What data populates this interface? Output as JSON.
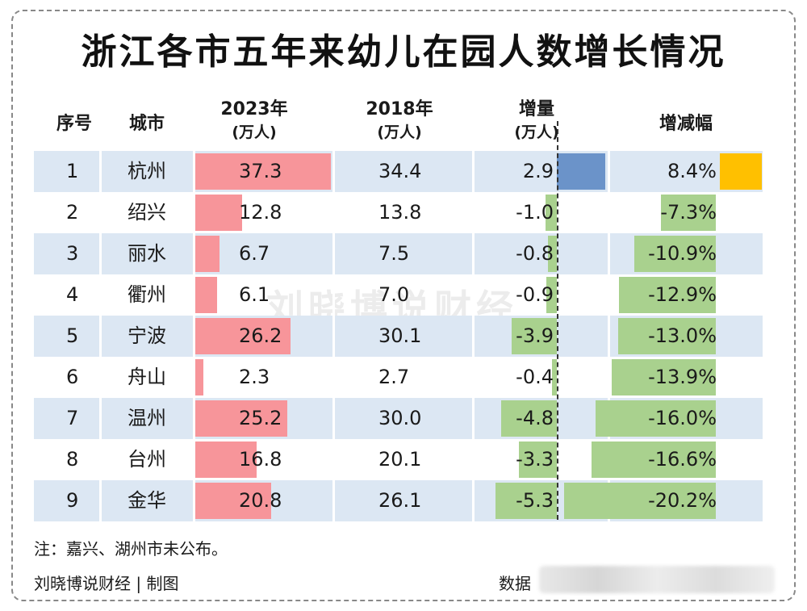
{
  "title": "浙江各市五年来幼儿在园人数增长情况",
  "headers": {
    "index": "序号",
    "city": "城市",
    "y2023": "2023年",
    "y2023_unit": "(万人)",
    "y2018": "2018年",
    "y2018_unit": "(万人)",
    "delta": "增量",
    "delta_unit": "(万人)",
    "pct": "增减幅"
  },
  "colors": {
    "band": "#dce7f3",
    "bar2023": "#f7959a",
    "delta_pos": "#6b93c9",
    "delta_neg": "#a9d18e",
    "pct_pos": "#ffc000",
    "pct_neg": "#a9d18e"
  },
  "chart_data": {
    "type": "table",
    "title": "浙江各市五年来幼儿在园人数增长情况",
    "columns": [
      "序号",
      "城市",
      "2023年(万人)",
      "2018年(万人)",
      "增量(万人)",
      "增减幅"
    ],
    "rows": [
      {
        "index": "1",
        "city": "杭州",
        "v2023": 37.3,
        "v2018": 34.4,
        "delta": 2.9,
        "pct": 8.4,
        "v2023_text": "37.3",
        "v2018_text": "34.4",
        "delta_text": "2.9",
        "pct_text": "8.4%"
      },
      {
        "index": "2",
        "city": "绍兴",
        "v2023": 12.8,
        "v2018": 13.8,
        "delta": -1.0,
        "pct": -7.3,
        "v2023_text": "12.8",
        "v2018_text": "13.8",
        "delta_text": "-1.0",
        "pct_text": "-7.3%"
      },
      {
        "index": "3",
        "city": "丽水",
        "v2023": 6.7,
        "v2018": 7.5,
        "delta": -0.8,
        "pct": -10.9,
        "v2023_text": "6.7",
        "v2018_text": "7.5",
        "delta_text": "-0.8",
        "pct_text": "-10.9%"
      },
      {
        "index": "4",
        "city": "衢州",
        "v2023": 6.1,
        "v2018": 7.0,
        "delta": -0.9,
        "pct": -12.9,
        "v2023_text": "6.1",
        "v2018_text": "7.0",
        "delta_text": "-0.9",
        "pct_text": "-12.9%"
      },
      {
        "index": "5",
        "city": "宁波",
        "v2023": 26.2,
        "v2018": 30.1,
        "delta": -3.9,
        "pct": -13.0,
        "v2023_text": "26.2",
        "v2018_text": "30.1",
        "delta_text": "-3.9",
        "pct_text": "-13.0%"
      },
      {
        "index": "6",
        "city": "舟山",
        "v2023": 2.3,
        "v2018": 2.7,
        "delta": -0.4,
        "pct": -13.9,
        "v2023_text": "2.3",
        "v2018_text": "2.7",
        "delta_text": "-0.4",
        "pct_text": "-13.9%"
      },
      {
        "index": "7",
        "city": "温州",
        "v2023": 25.2,
        "v2018": 30.0,
        "delta": -4.8,
        "pct": -16.0,
        "v2023_text": "25.2",
        "v2018_text": "30.0",
        "delta_text": "-4.8",
        "pct_text": "-16.0%"
      },
      {
        "index": "8",
        "city": "台州",
        "v2023": 16.8,
        "v2018": 20.1,
        "delta": -3.3,
        "pct": -16.6,
        "v2023_text": "16.8",
        "v2018_text": "20.1",
        "delta_text": "-3.3",
        "pct_text": "-16.6%"
      },
      {
        "index": "9",
        "city": "金华",
        "v2023": 20.8,
        "v2018": 26.1,
        "delta": -5.3,
        "pct": -20.2,
        "v2023_text": "20.8",
        "v2018_text": "26.1",
        "delta_text": "-5.3",
        "pct_text": "-20.2%"
      }
    ]
  },
  "watermark": "刘晓博说财经",
  "note": "注：嘉兴、湖州市未公布。",
  "footer": {
    "credit": "刘晓博说财经 | 制图",
    "source_label": "数据"
  }
}
